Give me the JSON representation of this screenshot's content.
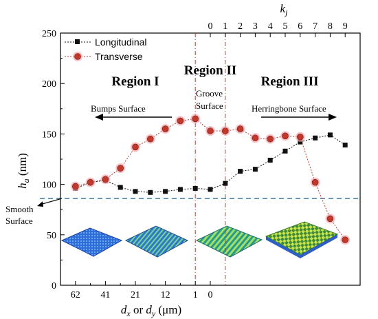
{
  "colors": {
    "longitudinal": "#111111",
    "transverse": "#c0392b",
    "transverse_glow": "#f4a9b0",
    "region_divider": "#c0392b",
    "smooth_line": "#1f5f8b",
    "axis": "#000000"
  },
  "chart_data": {
    "type": "line",
    "y_axis": {
      "label_var": "h",
      "label_sub": "a",
      "label_unit": " (nm)",
      "range": [
        0,
        250
      ],
      "ticks": [
        0,
        50,
        100,
        150,
        200,
        250
      ]
    },
    "x_axis_bottom": {
      "label_parts": [
        "d",
        "x",
        " or ",
        "d",
        "y",
        " (μm)"
      ],
      "ticks": [
        {
          "label": "62",
          "pos": 0
        },
        {
          "label": "41",
          "pos": 2
        },
        {
          "label": "21",
          "pos": 4
        },
        {
          "label": "12",
          "pos": 6
        },
        {
          "label": "1",
          "pos": 8
        },
        {
          "label": "0",
          "pos": 9
        }
      ]
    },
    "x_axis_top": {
      "label_var": "k",
      "label_sub": "j",
      "ticks": [
        {
          "label": "0",
          "pos": 9
        },
        {
          "label": "1",
          "pos": 10
        },
        {
          "label": "2",
          "pos": 11
        },
        {
          "label": "3",
          "pos": 12
        },
        {
          "label": "4",
          "pos": 13
        },
        {
          "label": "5",
          "pos": 14
        },
        {
          "label": "6",
          "pos": 15
        },
        {
          "label": "7",
          "pos": 16
        },
        {
          "label": "8",
          "pos": 17
        },
        {
          "label": "9",
          "pos": 18
        }
      ]
    },
    "x_range": [
      -1,
      19
    ],
    "series": [
      {
        "name": "Longitudinal",
        "marker": "square",
        "x": [
          0,
          1,
          2,
          3,
          4,
          5,
          6,
          7,
          8,
          9,
          10,
          11,
          12,
          13,
          14,
          15,
          16,
          17,
          18
        ],
        "values": [
          96,
          102,
          104,
          97,
          93,
          92,
          93,
          95,
          96,
          95,
          101,
          113,
          115,
          124,
          133,
          142,
          146,
          149,
          139
        ]
      },
      {
        "name": "Transverse",
        "marker": "circle",
        "x": [
          0,
          1,
          2,
          3,
          4,
          5,
          6,
          7,
          8,
          9,
          10,
          11,
          12,
          13,
          14,
          15,
          16,
          17,
          18
        ],
        "values": [
          98,
          102,
          105,
          116,
          137,
          145,
          155,
          163,
          165,
          153,
          153,
          155,
          146,
          145,
          148,
          147,
          102,
          66,
          45
        ]
      }
    ],
    "region_dividers_x": [
      8,
      10
    ],
    "smooth_surface_y": 86,
    "regions": [
      {
        "label": "Region I",
        "x": 4.0
      },
      {
        "label": "Region II",
        "x": 9.0
      },
      {
        "label": "Region III",
        "x": 14.3
      }
    ],
    "annotations": {
      "bumps": "Bumps Surface",
      "groove_line1": "Groove",
      "groove_line2": "Surface",
      "herringbone": "Herringbone Surface",
      "smooth_line1": "Smooth",
      "smooth_line2": "Surface"
    },
    "legend_position": "top-left",
    "grid": false
  }
}
